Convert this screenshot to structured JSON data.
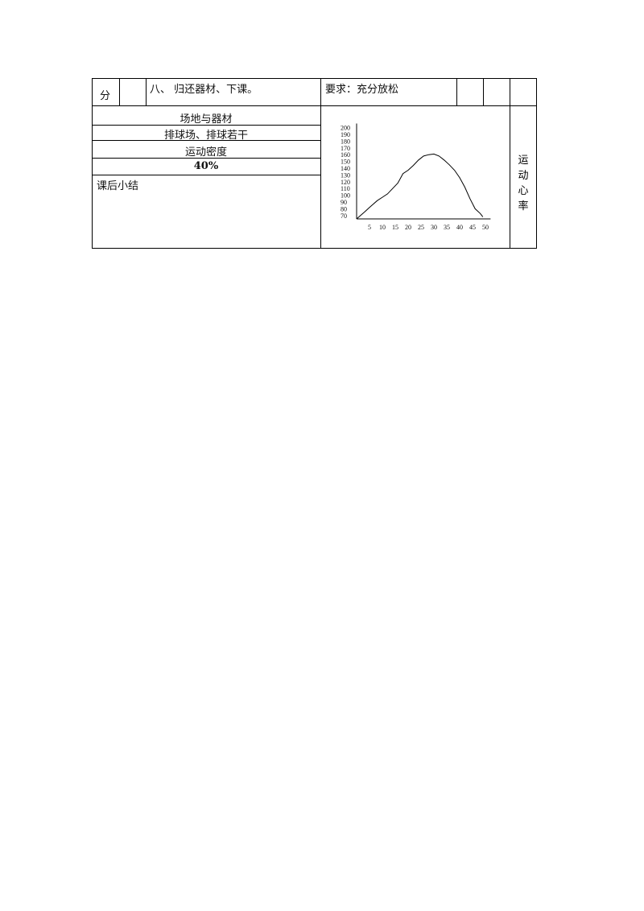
{
  "row1": {
    "col1": "分",
    "step": "八、 归还器材、下课。",
    "requirement": "要求：充分放松"
  },
  "left": {
    "venue_header": "场地与器材",
    "venue_value": "排球场、排球若干",
    "density_header": "运动密度",
    "density_value": "40%",
    "summary_label": "课后小结"
  },
  "right_label": "运动心率",
  "chart_data": {
    "type": "line",
    "title": "",
    "xlabel": "",
    "ylabel": "",
    "x_ticks": [
      5,
      10,
      15,
      20,
      25,
      30,
      35,
      40,
      45,
      50
    ],
    "y_ticks": [
      70,
      80,
      90,
      100,
      110,
      120,
      130,
      140,
      150,
      160,
      170,
      180,
      190,
      200
    ],
    "xlim": [
      0,
      52
    ],
    "ylim": [
      65,
      205
    ],
    "grid": false,
    "series": [
      {
        "x": [
          0,
          3,
          5,
          8,
          10,
          12,
          14,
          16,
          18,
          20,
          22,
          24,
          26,
          28,
          30,
          32,
          34,
          36,
          38,
          40,
          42,
          44,
          46,
          48,
          49
        ],
        "y": [
          65,
          75,
          82,
          92,
          97,
          102,
          110,
          118,
          132,
          137,
          144,
          152,
          158,
          160,
          161,
          158,
          152,
          145,
          137,
          126,
          112,
          95,
          80,
          73,
          68
        ]
      }
    ]
  }
}
